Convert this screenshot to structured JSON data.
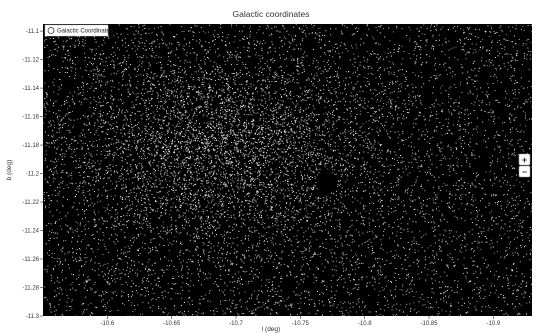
{
  "chart_data": {
    "type": "scatter",
    "title": "Galactic coordinates",
    "xlabel": "l (deg)",
    "ylabel": "b (deg)",
    "xlim": [
      -10.55,
      -10.93
    ],
    "ylim": [
      -11.3,
      -11.095
    ],
    "x_ticks": [
      -10.6,
      -10.65,
      -10.7,
      -10.75,
      -10.8,
      -10.85,
      -10.9
    ],
    "y_ticks": [
      -11.1,
      -11.12,
      -11.14,
      -11.16,
      -11.18,
      -11.2,
      -11.22,
      -11.24,
      -11.26,
      -11.28,
      -11.3
    ],
    "x_tick_labels": [
      "-10.6",
      "-10.65",
      "-10.7",
      "-10.75",
      "-10.8",
      "-10.85",
      "-10.9"
    ],
    "y_tick_labels": [
      "-11.1",
      "-11.12",
      "-11.14",
      "-11.16",
      "-11.18",
      "-11.2",
      "-11.22",
      "-11.24",
      "-11.26",
      "-11.28",
      "-11.3"
    ],
    "background_color": "#000000",
    "marker_color": "#ffffff",
    "legend": {
      "placement": "top-left",
      "entries": [
        "Galactic Coordinates"
      ]
    },
    "grid": false,
    "density": {
      "cluster_center": [
        -10.69,
        -11.18
      ],
      "cluster_spread": [
        0.06,
        0.035
      ],
      "dark_spot_center": [
        -10.769,
        -11.206
      ],
      "dark_spot_radius": [
        0.007,
        0.009
      ]
    }
  },
  "controls": {
    "zoom_in_label": "+",
    "zoom_out_label": "−"
  }
}
